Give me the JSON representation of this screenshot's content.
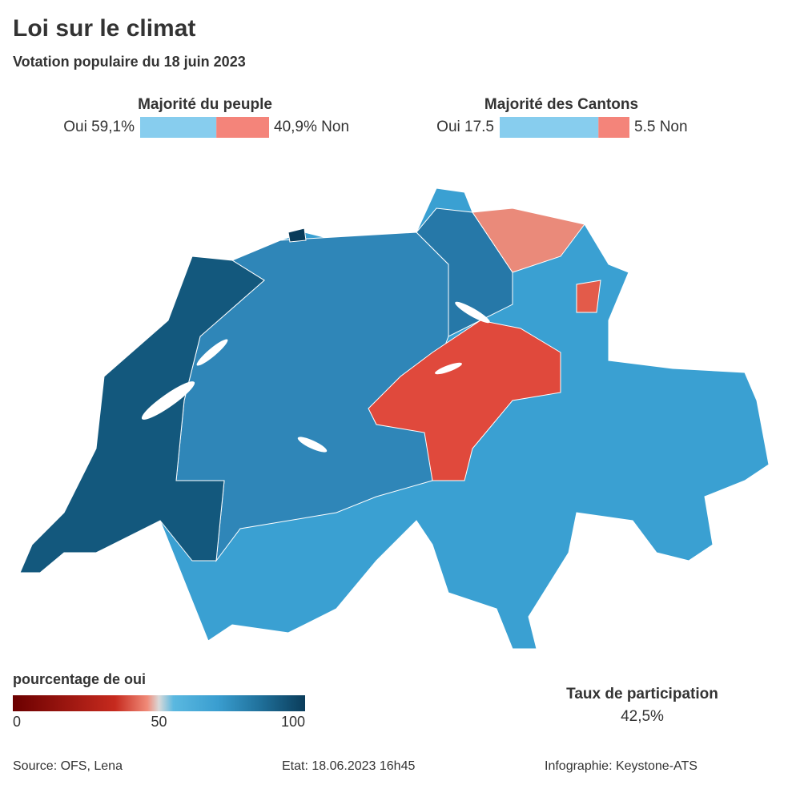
{
  "header": {
    "title": "Loi sur le climat",
    "subtitle": "Votation populaire du 18 juin 2023"
  },
  "people": {
    "title": "Majorité du peuple",
    "yes": {
      "value": 59.1,
      "label": "Oui 59,1%"
    },
    "no": {
      "value": 40.9,
      "label": "40,9% Non"
    }
  },
  "cantons": {
    "title": "Majorité des Cantons",
    "yes": {
      "value": 17.5,
      "label": "Oui 17.5"
    },
    "no": {
      "value": 5.5,
      "label": "5.5 Non"
    }
  },
  "legend": {
    "title": "pourcentage de oui",
    "range": [
      0,
      100
    ],
    "ticks": [
      0,
      50,
      100
    ]
  },
  "turnout": {
    "title": "Taux de participation",
    "value": "42,5%"
  },
  "footer": {
    "source": "Source: OFS, Lena",
    "status": "Etat: 18.06.2023 16h45",
    "credit": "Infographie: Keystone-ATS"
  }
}
